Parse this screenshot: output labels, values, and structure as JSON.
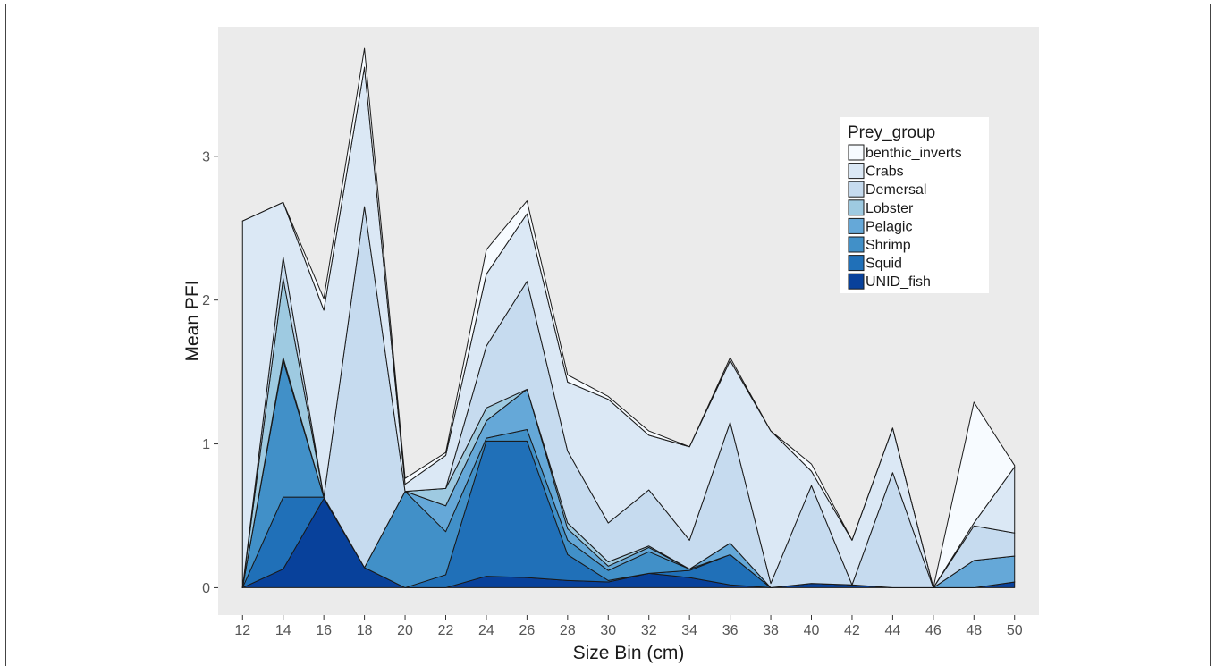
{
  "chart_data": {
    "type": "area",
    "xlabel": "Size Bin (cm)",
    "ylabel": "Mean PFI",
    "x": [
      12,
      14,
      16,
      18,
      20,
      22,
      24,
      26,
      28,
      30,
      32,
      34,
      36,
      38,
      40,
      42,
      44,
      46,
      48,
      50
    ],
    "xlim": [
      10.8,
      51.2
    ],
    "ylim": [
      -0.19,
      3.9
    ],
    "yticks": [
      0,
      1,
      2,
      3
    ],
    "grid": false,
    "background": "#ebebeb",
    "legend": {
      "title": "Prey_group",
      "position": "top-right"
    },
    "series": [
      {
        "name": "UNID_fish",
        "color": "#08419b",
        "values": [
          0,
          0.13,
          0.62,
          0.14,
          0,
          0,
          0.08,
          0.07,
          0.05,
          0.04,
          0.1,
          0.07,
          0.02,
          0,
          0.03,
          0.02,
          0,
          0,
          0,
          0.04
        ]
      },
      {
        "name": "Squid",
        "color": "#2070b8",
        "values": [
          0,
          0.5,
          0.01,
          0,
          0,
          0.09,
          0.94,
          0.95,
          0.18,
          0.01,
          0,
          0.05,
          0.21,
          0,
          0,
          0,
          0,
          0,
          0,
          0
        ]
      },
      {
        "name": "Shrimp",
        "color": "#4190c8",
        "values": [
          0,
          0.95,
          0,
          0,
          0.67,
          0.3,
          0.02,
          0.08,
          0.1,
          0.07,
          0.15,
          0.01,
          0,
          0,
          0,
          0,
          0,
          0,
          0,
          0
        ]
      },
      {
        "name": "Pelagic",
        "color": "#65a8d8",
        "values": [
          0,
          0.02,
          0,
          0,
          0,
          0.18,
          0.12,
          0.28,
          0.08,
          0.03,
          0.03,
          0,
          0.08,
          0,
          0,
          0,
          0,
          0,
          0.19,
          0.18
        ]
      },
      {
        "name": "Lobster",
        "color": "#9ecae1",
        "values": [
          0,
          0.55,
          0,
          0,
          0,
          0.12,
          0.09,
          0,
          0.04,
          0.03,
          0.01,
          0,
          0,
          0,
          0,
          0,
          0,
          0,
          0,
          0
        ]
      },
      {
        "name": "Demersal",
        "color": "#c6dbef",
        "values": [
          0,
          0.15,
          0,
          2.51,
          0,
          0,
          0.43,
          0.75,
          0.5,
          0.27,
          0.39,
          0.2,
          0.84,
          0.03,
          0.68,
          0,
          0.8,
          0,
          0.24,
          0.16
        ]
      },
      {
        "name": "Crabs",
        "color": "#dbe8f5",
        "values": [
          2.55,
          0.38,
          1.3,
          0.97,
          0.05,
          0.23,
          0.5,
          0.47,
          0.48,
          0.86,
          0.38,
          0.65,
          0.43,
          1.06,
          0.1,
          0.31,
          0.31,
          0,
          0.02,
          0.46
        ]
      },
      {
        "name": "benthic_inverts",
        "color": "#f7fbff",
        "values": [
          0,
          0,
          0.08,
          0.13,
          0.04,
          0.02,
          0.17,
          0.09,
          0.05,
          0.02,
          0.03,
          0,
          0.02,
          0,
          0.05,
          0,
          0,
          0,
          0.84,
          0.01
        ]
      }
    ]
  }
}
